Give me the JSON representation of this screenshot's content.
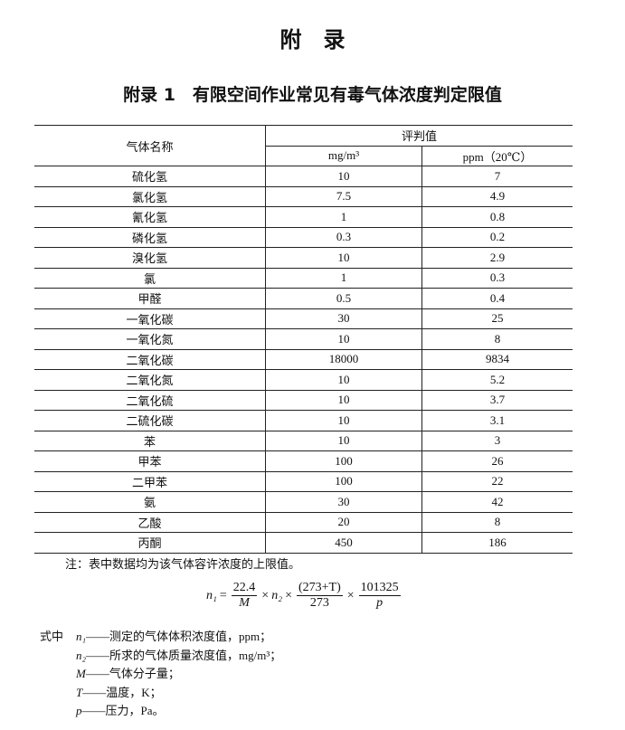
{
  "header": {
    "title": "附　录",
    "subtitle": "附录 1　有限空间作业常见有毒气体浓度判定限值"
  },
  "table": {
    "head": {
      "name": "气体名称",
      "group": "评判值",
      "col1": "mg/m³",
      "col2": "ppm（20℃）"
    },
    "rows": [
      [
        "硫化氢",
        "10",
        "7"
      ],
      [
        "氯化氢",
        "7.5",
        "4.9"
      ],
      [
        "氰化氢",
        "1",
        "0.8"
      ],
      [
        "磷化氢",
        "0.3",
        "0.2"
      ],
      [
        "溴化氢",
        "10",
        "2.9"
      ],
      [
        "氯",
        "1",
        "0.3"
      ],
      [
        "甲醛",
        "0.5",
        "0.4"
      ],
      [
        "一氧化碳",
        "30",
        "25"
      ],
      [
        "一氧化氮",
        "10",
        "8"
      ],
      [
        "二氧化碳",
        "18000",
        "9834"
      ],
      [
        "二氧化氮",
        "10",
        "5.2"
      ],
      [
        "二氧化硫",
        "10",
        "3.7"
      ],
      [
        "二硫化碳",
        "10",
        "3.1"
      ],
      [
        "苯",
        "10",
        "3"
      ],
      [
        "甲苯",
        "100",
        "26"
      ],
      [
        "二甲苯",
        "100",
        "22"
      ],
      [
        "氨",
        "30",
        "42"
      ],
      [
        "乙酸",
        "20",
        "8"
      ],
      [
        "丙酮",
        "450",
        "186"
      ]
    ]
  },
  "note": "注：表中数据均为该气体容许浓度的上限值。",
  "formula": {
    "lhs": "n₁",
    "eq": "=",
    "f1num": "22.4",
    "f1den": "M",
    "op1": "×",
    "n2": "n₂",
    "op2": "×",
    "f2num": "(273+T)",
    "f2den": "273",
    "op3": "×",
    "f3num": "101325",
    "f3den": "p"
  },
  "legend": {
    "lead": "式中",
    "items": [
      {
        "symbol": "n₁",
        "text": "——测定的气体体积浓度值，ppm；"
      },
      {
        "symbol": "n₂",
        "text": "——所求的气体质量浓度值，mg/m³；"
      },
      {
        "symbol": "M",
        "text": "——气体分子量；"
      },
      {
        "symbol": "T",
        "text": "——温度，K；"
      },
      {
        "symbol": "p",
        "text": "——压力，Pa。"
      }
    ]
  }
}
